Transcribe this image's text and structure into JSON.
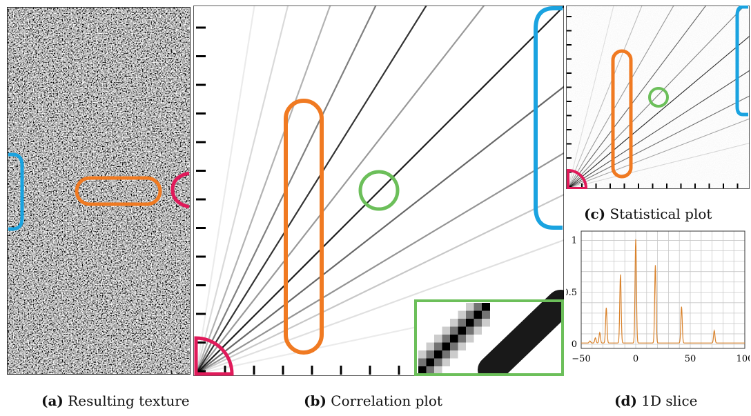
{
  "captions": {
    "a": {
      "tag": "(a)",
      "text": "Resulting texture"
    },
    "b": {
      "tag": "(b)",
      "text": "Correlation plot"
    },
    "c": {
      "tag": "(c)",
      "text": "Statistical plot"
    },
    "d": {
      "tag": "(d)",
      "text": "1D slice"
    }
  },
  "colors": {
    "orange": "#f07a22",
    "blue": "#1aa3e0",
    "green": "#6cbf5a",
    "magenta": "#e01a5a",
    "slice_line": "#d9822b"
  },
  "chart_data": {
    "type": "line",
    "title": "",
    "xlabel": "",
    "ylabel": "",
    "xlim": [
      -50,
      100
    ],
    "ylim": [
      0,
      1
    ],
    "x_ticks": [
      "−50",
      "0",
      "50",
      "100"
    ],
    "y_ticks": [
      "0",
      "0.5",
      "1"
    ],
    "grid": true,
    "peaks": [
      {
        "x": -42,
        "y": 0.02
      },
      {
        "x": -37,
        "y": 0.05
      },
      {
        "x": -33,
        "y": 0.1
      },
      {
        "x": -27,
        "y": 0.34
      },
      {
        "x": -14,
        "y": 0.66
      },
      {
        "x": 0,
        "y": 1.0
      },
      {
        "x": 18,
        "y": 0.75
      },
      {
        "x": 42,
        "y": 0.35
      },
      {
        "x": 72,
        "y": 0.12
      }
    ]
  }
}
